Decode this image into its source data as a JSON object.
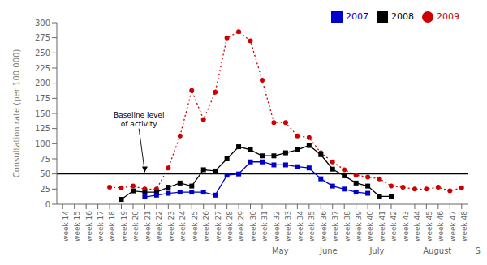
{
  "chart_data": {
    "type": "line",
    "x": [
      14,
      15,
      16,
      17,
      18,
      19,
      20,
      21,
      22,
      23,
      24,
      25,
      26,
      27,
      28,
      29,
      30,
      31,
      32,
      33,
      34,
      35,
      36,
      37,
      38,
      39,
      40,
      41,
      42,
      43,
      44,
      45,
      46,
      47,
      48
    ],
    "series": [
      {
        "name": "2009",
        "color": "#cc0000",
        "marker": "circle",
        "line_style": "dotted",
        "values": [
          null,
          null,
          null,
          null,
          28,
          27,
          30,
          25,
          25,
          60,
          113,
          188,
          140,
          185,
          275,
          285,
          270,
          205,
          135,
          135,
          113,
          110,
          85,
          70,
          57,
          48,
          45,
          42,
          30,
          28,
          25,
          25,
          28,
          22,
          27
        ]
      },
      {
        "name": "2008",
        "color": "#000000",
        "marker": "square",
        "line_style": "solid",
        "values": [
          null,
          null,
          null,
          null,
          null,
          8,
          22,
          20,
          20,
          28,
          35,
          30,
          57,
          55,
          75,
          95,
          90,
          80,
          80,
          85,
          90,
          97,
          82,
          58,
          47,
          35,
          30,
          13,
          13,
          null,
          null,
          null,
          null,
          null,
          null
        ]
      },
      {
        "name": "2007",
        "color": "#0000cc",
        "marker": "square",
        "line_style": "solid",
        "values": [
          null,
          null,
          null,
          null,
          null,
          null,
          null,
          12,
          15,
          18,
          20,
          20,
          20,
          15,
          48,
          50,
          70,
          70,
          65,
          65,
          62,
          60,
          42,
          30,
          25,
          20,
          18,
          null,
          null,
          null,
          null,
          null,
          null,
          null,
          null
        ]
      }
    ],
    "ylabel": "Consultation rate (per 100 000)",
    "ylim": [
      0,
      300
    ],
    "yticks": [
      0,
      25,
      50,
      75,
      100,
      125,
      150,
      175,
      200,
      225,
      250,
      275,
      300
    ],
    "xlim": [
      13.5,
      48.5
    ],
    "xticks": [
      {
        "value": 14,
        "label": "week 14"
      },
      {
        "value": 15,
        "label": "week 15"
      },
      {
        "value": 16,
        "label": "week 16"
      },
      {
        "value": 17,
        "label": "week 17"
      },
      {
        "value": 18,
        "label": "week 18"
      },
      {
        "value": 19,
        "label": "week 19"
      },
      {
        "value": 20,
        "label": "week 20"
      },
      {
        "value": 21,
        "label": "week 21"
      },
      {
        "value": 22,
        "label": "week 22"
      },
      {
        "value": 23,
        "label": "week 23"
      },
      {
        "value": 24,
        "label": "week 24"
      },
      {
        "value": 25,
        "label": "week 25"
      },
      {
        "value": 26,
        "label": "week 26"
      },
      {
        "value": 27,
        "label": "week 27"
      },
      {
        "value": 28,
        "label": "week 28"
      },
      {
        "value": 29,
        "label": "week 29"
      },
      {
        "value": 30,
        "label": "week 30"
      },
      {
        "value": 31,
        "label": "week 31"
      },
      {
        "value": 32,
        "label": "week 32"
      },
      {
        "value": 33,
        "label": "week 33"
      },
      {
        "value": 34,
        "label": "week 34"
      },
      {
        "value": 35,
        "label": "week 35"
      },
      {
        "value": 36,
        "label": "week 36"
      },
      {
        "value": 37,
        "label": "week 37"
      },
      {
        "value": 38,
        "label": "week 38"
      },
      {
        "value": 39,
        "label": "week 39"
      },
      {
        "value": 40,
        "label": "week 40"
      },
      {
        "value": 41,
        "label": "week 41"
      },
      {
        "value": 42,
        "label": "week 42"
      },
      {
        "value": 43,
        "label": "week 43"
      },
      {
        "value": 44,
        "label": "week 44"
      },
      {
        "value": 45,
        "label": "week 45"
      },
      {
        "value": 46,
        "label": "week 46"
      },
      {
        "value": 47,
        "label": "week 47"
      },
      {
        "value": 48,
        "label": "week 48"
      }
    ],
    "month_labels": [
      {
        "value": 18.5,
        "label": "May"
      },
      {
        "value": 22.5,
        "label": "June"
      },
      {
        "value": 26.5,
        "label": "July"
      },
      {
        "value": 31.5,
        "label": "August"
      },
      {
        "value": 36.5,
        "label": "September"
      }
    ],
    "baseline": 50,
    "annotations": [
      {
        "text": "Baseline level\nof activity",
        "x": 20.5,
        "y": 125,
        "arrow_x": 21,
        "arrow_y": 53
      }
    ],
    "legend": "upper right",
    "grid": false
  }
}
